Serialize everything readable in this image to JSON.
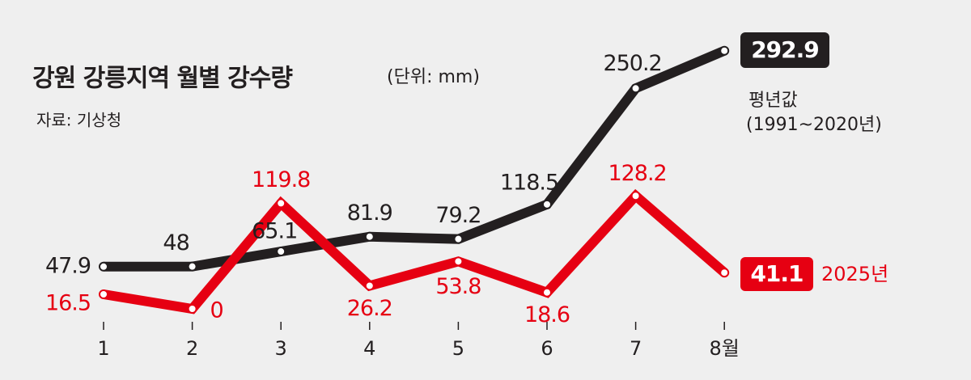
{
  "chart_data": {
    "type": "line",
    "title": "강원 강릉지역 월별 강수량",
    "unit": "(단위: mm)",
    "source": "자료: 기상청",
    "categories": [
      "1",
      "2",
      "3",
      "4",
      "5",
      "6",
      "7",
      "8월"
    ],
    "series": [
      {
        "name": "평년값",
        "period": "(1991~2020년)",
        "color": "#231f20",
        "values": [
          47.9,
          48,
          65.1,
          81.9,
          79.2,
          118.5,
          250.2,
          292.9
        ]
      },
      {
        "name": "2025년",
        "color": "#e60012",
        "values": [
          16.5,
          0,
          119.8,
          26.2,
          53.8,
          18.6,
          128.2,
          41.1
        ]
      }
    ]
  }
}
